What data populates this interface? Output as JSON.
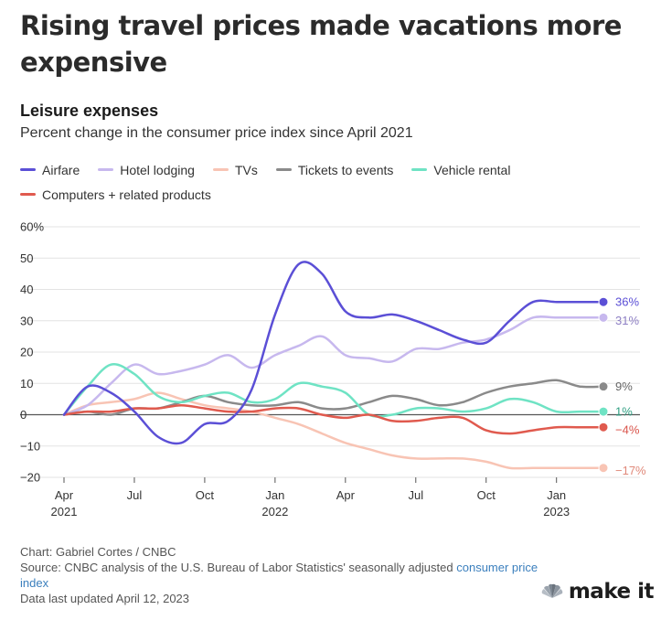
{
  "headline": "Rising travel prices made vacations more expensive",
  "brand": {
    "name": "make it",
    "mark_text": "CNBC"
  },
  "footer": {
    "credit": "Chart: Gabriel Cortes / CNBC",
    "source_prefix": "Source: CNBC analysis of the U.S. Bureau of Labor Statistics' seasonally adjusted ",
    "source_link": "consumer price index",
    "updated": "Data last updated April 12, 2023"
  },
  "colors": {
    "accent_link": "#3b7fbd",
    "gridline": "#e3e3e3",
    "baseline": "#555555"
  },
  "chart_data": {
    "type": "line",
    "title": "Leisure expenses",
    "subtitle": "Percent change in the consumer price index since April 2021",
    "xlabel": "",
    "ylabel": "",
    "ylim": [
      -20,
      60
    ],
    "yticks": [
      -20,
      -10,
      0,
      10,
      20,
      30,
      40,
      50,
      60
    ],
    "ytick_labels": [
      "−20",
      "−10",
      "0",
      "10",
      "20",
      "30",
      "40",
      "50",
      "60%"
    ],
    "x": [
      "2021-04",
      "2021-05",
      "2021-06",
      "2021-07",
      "2021-08",
      "2021-09",
      "2021-10",
      "2021-11",
      "2021-12",
      "2022-01",
      "2022-02",
      "2022-03",
      "2022-04",
      "2022-05",
      "2022-06",
      "2022-07",
      "2022-08",
      "2022-09",
      "2022-10",
      "2022-11",
      "2022-12",
      "2023-01",
      "2023-02",
      "2023-03"
    ],
    "xticks": [
      {
        "x": "2021-04",
        "label": "Apr",
        "year": "2021"
      },
      {
        "x": "2021-07",
        "label": "Jul",
        "year": ""
      },
      {
        "x": "2021-10",
        "label": "Oct",
        "year": ""
      },
      {
        "x": "2022-01",
        "label": "Jan",
        "year": "2022"
      },
      {
        "x": "2022-04",
        "label": "Apr",
        "year": ""
      },
      {
        "x": "2022-07",
        "label": "Jul",
        "year": ""
      },
      {
        "x": "2022-10",
        "label": "Oct",
        "year": ""
      },
      {
        "x": "2023-01",
        "label": "Jan",
        "year": "2023"
      }
    ],
    "grid": true,
    "legend_position": "top",
    "series": [
      {
        "name": "Airfare",
        "color": "#5b4fd6",
        "end_label": "36%",
        "end_color": "#5b4fd6",
        "values": [
          0,
          9,
          7,
          1,
          -7,
          -9,
          -3,
          -2,
          8,
          32,
          48,
          45,
          33,
          31,
          32,
          30,
          27,
          24,
          23,
          30,
          36,
          36,
          36,
          36
        ]
      },
      {
        "name": "Hotel lodging",
        "color": "#c7b8ee",
        "end_label": "31%",
        "end_color": "#8d7fc4",
        "values": [
          0,
          3,
          10,
          16,
          13,
          14,
          16,
          19,
          15,
          19,
          22,
          25,
          19,
          18,
          17,
          21,
          21,
          23,
          24,
          27,
          31,
          31,
          31,
          31
        ]
      },
      {
        "name": "TVs",
        "color": "#f8c4b4",
        "end_label": "−17%",
        "end_color": "#e0897a",
        "values": [
          0,
          3,
          4,
          5,
          7,
          5,
          3,
          2,
          1,
          -1,
          -3,
          -6,
          -9,
          -11,
          -13,
          -14,
          -14,
          -14,
          -15,
          -17,
          -17,
          -17,
          -17,
          -17
        ]
      },
      {
        "name": "Tickets to events",
        "color": "#8a8a8a",
        "end_label": "9%",
        "end_color": "#666666",
        "values": [
          0,
          1,
          0,
          2,
          2,
          4,
          6,
          4,
          3,
          3,
          4,
          2,
          2,
          4,
          6,
          5,
          3,
          4,
          7,
          9,
          10,
          11,
          9,
          9
        ]
      },
      {
        "name": "Vehicle rental",
        "color": "#6fe3c4",
        "end_label": "1%",
        "end_color": "#2f9f82",
        "values": [
          0,
          9,
          16,
          13,
          6,
          4,
          6,
          7,
          4,
          5,
          10,
          9,
          7,
          0,
          0,
          2,
          2,
          1,
          2,
          5,
          4,
          1,
          1,
          1
        ]
      },
      {
        "name": "Computers + related products",
        "color": "#e05a4e",
        "end_label": "−4%",
        "end_color": "#d9534a",
        "values": [
          0,
          1,
          1,
          2,
          2,
          3,
          2,
          1,
          1,
          2,
          2,
          0,
          -1,
          0,
          -2,
          -2,
          -1,
          -1,
          -5,
          -6,
          -5,
          -4,
          -4,
          -4
        ]
      }
    ]
  }
}
